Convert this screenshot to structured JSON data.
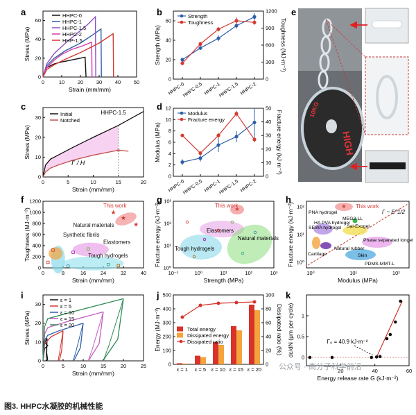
{
  "caption": "图3. HHPC水凝胶的机械性能",
  "watermark": "公众号 · 高分子科学前沿",
  "panel_letters": [
    "a",
    "b",
    "c",
    "d",
    "e",
    "f",
    "g",
    "h",
    "i",
    "j",
    "k"
  ],
  "colors": {
    "black": "#111111",
    "blue": "#2d5fa8",
    "purple": "#8e4fc3",
    "pink": "#d93aa8",
    "green": "#2e9a4e",
    "red": "#d23a32",
    "magenta_fill": "#f6c7ee",
    "total": "#d8322b",
    "dissipated": "#f4a43c",
    "ratio": "#d8322b",
    "fit": "#c9392f"
  },
  "chart_data": [
    {
      "id": "a",
      "type": "line",
      "xlabel": "Strain (mm/mm)",
      "ylabel": "Stress (MPa)",
      "xlim": [
        0,
        50
      ],
      "ylim": [
        0,
        70
      ],
      "xticks": [
        0,
        10,
        20,
        30,
        40,
        50
      ],
      "yticks": [
        0,
        20,
        40,
        60
      ],
      "series": [
        {
          "name": "HHPC-0",
          "color": "#111111",
          "x": [
            0,
            2,
            6,
            10,
            15,
            20,
            22.5,
            23
          ],
          "y": [
            0,
            10,
            14,
            16,
            18,
            20,
            21,
            0
          ]
        },
        {
          "name": "HHPC-1",
          "color": "#2d5fa8",
          "x": [
            0,
            2,
            6,
            12,
            20,
            26,
            31,
            31.2
          ],
          "y": [
            0,
            12,
            20,
            28,
            36,
            44,
            51,
            0
          ]
        },
        {
          "name": "HHPC-1.5",
          "color": "#8e4fc3",
          "x": [
            0,
            2,
            6,
            12,
            18,
            24,
            28,
            28.2
          ],
          "y": [
            0,
            14,
            25,
            36,
            46,
            56,
            64,
            0
          ]
        },
        {
          "name": "HHPC-2",
          "color": "#d93aa8",
          "x": [
            0,
            2,
            6,
            10,
            15,
            21,
            26,
            26.2
          ],
          "y": [
            0,
            10,
            18,
            24,
            29,
            33,
            37,
            0
          ]
        },
        {
          "name": "HHP-1.5",
          "color": "#d23a32",
          "x": [
            0,
            2,
            6,
            12,
            20,
            30,
            37.5,
            37.7
          ],
          "y": [
            0,
            8,
            13,
            19,
            26,
            36,
            46,
            0
          ]
        }
      ]
    },
    {
      "id": "b",
      "type": "line",
      "ylabel": "Strength (MPa)",
      "ylabel_right": "Toughness (MJ·m⁻³)",
      "categories": [
        "HHPC-0",
        "HHPC-0.5",
        "HHPC-1",
        "HHPC-1.5",
        "HHPC-2"
      ],
      "ylim": [
        0,
        70
      ],
      "ylim_right": [
        0,
        1200
      ],
      "yticks": [
        0,
        20,
        40,
        60
      ],
      "yticks_right": [
        0,
        300,
        600,
        900,
        1200
      ],
      "series": [
        {
          "name": "Strength",
          "color": "#2d5fa8",
          "axis": "left",
          "values": [
            20,
            32,
            42,
            55,
            64
          ],
          "errors": [
            2,
            2,
            3,
            3,
            4
          ]
        },
        {
          "name": "Toughness",
          "color": "#d23a32",
          "axis": "right",
          "values": [
            280,
            620,
            880,
            1030,
            1000
          ],
          "errors": [
            30,
            40,
            40,
            60,
            40
          ]
        }
      ]
    },
    {
      "id": "c",
      "type": "line",
      "xlabel": "Strain (mm/mm)",
      "ylabel": "Stress (MPa)",
      "xlim": [
        0,
        20
      ],
      "ylim": [
        0,
        35
      ],
      "xticks": [
        0,
        5,
        10,
        15,
        20
      ],
      "yticks": [
        0,
        10,
        20,
        30
      ],
      "annotation": "HHPC-1.5",
      "shade_label": "Γ / H",
      "series": [
        {
          "name": "Initial",
          "color": "#111111",
          "x": [
            0,
            0.5,
            1.5,
            3,
            6,
            10,
            15,
            20
          ],
          "y": [
            0,
            6,
            9,
            11,
            15,
            20,
            26,
            33
          ]
        },
        {
          "name": "Notched",
          "color": "#c0504d",
          "x": [
            0,
            0.5,
            1.5,
            3,
            6,
            10,
            14,
            15,
            17
          ],
          "y": [
            0,
            2.5,
            4.5,
            6,
            8.5,
            11,
            13,
            13.5,
            13
          ]
        }
      ],
      "notch_break": [
        15,
        13.5
      ]
    },
    {
      "id": "d",
      "type": "line",
      "ylabel": "Modulus (MPa)",
      "ylabel_right": "Fracture energy (kJ·m⁻²)",
      "categories": [
        "HHPC-0",
        "HHPC-0.5",
        "HHPC-1",
        "HHPC-1.5",
        "HHPC-2"
      ],
      "ylim": [
        0,
        12
      ],
      "ylim_right": [
        0,
        50
      ],
      "yticks": [
        0,
        2,
        4,
        6,
        8,
        10,
        12
      ],
      "yticks_right": [
        0,
        10,
        20,
        30,
        40,
        50
      ],
      "series": [
        {
          "name": "Modulus",
          "color": "#2d5fa8",
          "axis": "left",
          "values": [
            2.5,
            3.2,
            5.5,
            7,
            9.5
          ],
          "errors": [
            0.5,
            0.6,
            1.2,
            1,
            2.5
          ]
        },
        {
          "name": "Fracture energy",
          "color": "#d23a32",
          "axis": "right",
          "values": [
            30,
            17,
            30,
            46,
            27
          ],
          "errors": [
            1,
            1.5,
            2,
            2,
            2
          ]
        }
      ]
    },
    {
      "id": "f",
      "type": "scatter",
      "xlabel": "Strain (mm/mm)",
      "ylabel": "Toughness (MJ·m⁻³)",
      "xlim": [
        0,
        40
      ],
      "ylim": [
        0,
        1200
      ],
      "xticks": [
        0,
        8,
        16,
        24,
        32,
        40
      ],
      "yticks": [
        0,
        200,
        400,
        600,
        800,
        1000,
        1200
      ],
      "regions": [
        "Natural materials",
        "Synthetic fibrils",
        "Elastomers",
        "Tough hydrogels",
        "This work"
      ],
      "this_work_points": [
        [
          28,
          1000
        ],
        [
          32,
          900
        ],
        [
          37,
          780
        ]
      ]
    },
    {
      "id": "g",
      "type": "scatter",
      "xlabel": "Strength (MPa)",
      "ylabel": "Fracture energy (kJ·m⁻²)",
      "xscale": "log",
      "yscale": "log",
      "xticks": [
        "10⁻¹",
        "10⁰",
        "10¹",
        "10²",
        "10³"
      ],
      "yticks": [
        "10⁰",
        "10¹",
        "10²",
        "10³"
      ],
      "regions": [
        "This work",
        "Elastomers",
        "Natural materials",
        "Tough hydrogels"
      ]
    },
    {
      "id": "h",
      "type": "scatter",
      "xlabel": "Modulus (MPa)",
      "ylabel": "Fracture energy (kJ·m⁻²)",
      "xscale": "log",
      "yscale": "log",
      "xticks": [
        "10⁰",
        "10¹",
        "10²"
      ],
      "yticks": [
        "10⁰",
        "10¹",
        "10²"
      ],
      "legend": "Γ ~ E^1/2",
      "regions": [
        "This work",
        "PNA hydrogel",
        "MEG2-LL",
        "HA PVA hydrogel",
        "SEWA hydrogel",
        "Sal-Exogel",
        "Phase separated Iongel",
        "Natural rubber",
        "Cartilage",
        "Skin",
        "PDMS-MMT-L"
      ]
    },
    {
      "id": "i",
      "type": "line",
      "xlabel": "Strain (mm/mm)",
      "ylabel": "Stress (MPa)",
      "xlim": [
        0,
        25
      ],
      "ylim": [
        0,
        35
      ],
      "xticks": [
        0,
        5,
        10,
        15,
        20,
        25
      ],
      "yticks": [
        0,
        10,
        20,
        30
      ],
      "series": [
        {
          "name": "ε = 1",
          "color": "#111111",
          "peak": [
            1,
            12
          ]
        },
        {
          "name": "ε = 5",
          "color": "#d23a32",
          "peak": [
            5,
            16
          ]
        },
        {
          "name": "ε = 10",
          "color": "#2d5fa8",
          "peak": [
            10,
            20
          ]
        },
        {
          "name": "ε = 15",
          "color": "#c45cc4",
          "peak": [
            15,
            26
          ]
        },
        {
          "name": "ε = 20",
          "color": "#2e8b57",
          "peak": [
            20,
            33
          ]
        }
      ]
    },
    {
      "id": "j",
      "type": "bar",
      "ylabel": "Energy (MJ·m⁻³)",
      "ylabel_right": "Dissipated ratio (%)",
      "categories": [
        "ε = 1",
        "ε = 5",
        "ε = 10",
        "ε = 15",
        "ε = 20"
      ],
      "ylim": [
        0,
        500
      ],
      "ylim_right": [
        0,
        100
      ],
      "yticks": [
        0,
        100,
        200,
        300,
        400,
        500
      ],
      "yticks_right": [
        0,
        20,
        40,
        60,
        80,
        100
      ],
      "series": [
        {
          "name": "Total energy",
          "color": "#d8322b",
          "values": [
            8,
            62,
            160,
            275,
            430
          ]
        },
        {
          "name": "Dissipated energy",
          "color": "#f4a43c",
          "values": [
            6,
            52,
            140,
            245,
            390
          ]
        },
        {
          "name": "Dissipated ratio",
          "color": "#d8322b",
          "axis": "right",
          "values": [
            68,
            85,
            88,
            89,
            90
          ]
        }
      ]
    },
    {
      "id": "k",
      "type": "scatter",
      "xlabel": "Energy release rate G (kJ·m⁻²)",
      "ylabel": "dc/dN (μm per cycle)",
      "xlim": [
        0,
        60
      ],
      "ylim": [
        -0.2,
        1.5
      ],
      "xticks": [
        20,
        40,
        60
      ],
      "yticks": [
        0,
        0.5,
        1.0
      ],
      "annotation": "Γ₀ = 40.9 kJ·m⁻²",
      "threshold": 40.9,
      "points": [
        [
          2,
          0
        ],
        [
          15,
          0
        ],
        [
          38,
          0
        ],
        [
          41,
          0.01
        ],
        [
          43,
          0.02
        ],
        [
          47,
          0.45
        ],
        [
          49,
          0.55
        ],
        [
          52,
          0.85
        ],
        [
          55,
          1.35
        ]
      ]
    }
  ],
  "photo_labels": {
    "rings": "HIGH",
    "rings2": "10KG"
  }
}
